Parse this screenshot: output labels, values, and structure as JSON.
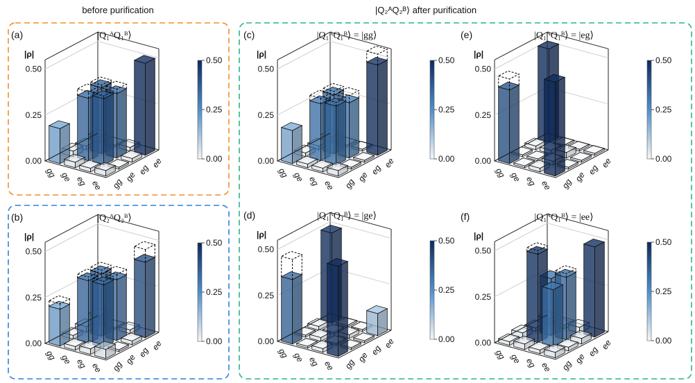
{
  "headers": {
    "left": "before purification",
    "right": "|Q₂ᴬQ₂ᴮ⟩ after purification"
  },
  "colors": {
    "orange": "#f28e2b",
    "blue": "#2f80d8",
    "green": "#2bb38a",
    "cmax": "#0d2a5e",
    "cmid": "#4f8fcb",
    "cmin": "#f7f7f7"
  },
  "z_axis_label": "|ρ|",
  "chart_data": [
    {
      "panel": "(a)",
      "title": "|Q₁ᴬQ₁ᴮ⟩",
      "type": "bar3d",
      "rows": [
        "gg",
        "ge",
        "eg",
        "ee"
      ],
      "cols": [
        "gg",
        "ge",
        "eg",
        "ee"
      ],
      "zticks": [
        "0.00",
        "0.25",
        "0.50"
      ],
      "zlim": [
        0,
        0.55
      ],
      "colorbar": {
        "ticks": [
          "0.00",
          "0.25",
          "0.50"
        ],
        "range": [
          0,
          0.5
        ]
      },
      "values": [
        [
          0.19,
          0.03,
          0.02,
          0.03
        ],
        [
          0.03,
          0.34,
          0.36,
          0.01
        ],
        [
          0.02,
          0.36,
          0.35,
          0.02
        ],
        [
          0.03,
          0.01,
          0.02,
          0.5
        ]
      ],
      "ideal": [
        [
          0.0,
          0.0,
          0.0,
          0.0
        ],
        [
          0.0,
          0.375,
          0.375,
          0.0
        ],
        [
          0.0,
          0.375,
          0.375,
          0.0
        ],
        [
          0.0,
          0.0,
          0.0,
          0.5
        ]
      ]
    },
    {
      "panel": "(b)",
      "title": "|Q₂ᴬQ₂ᴮ⟩",
      "type": "bar3d",
      "rows": [
        "gg",
        "ge",
        "eg",
        "ee"
      ],
      "cols": [
        "gg",
        "ge",
        "eg",
        "ee"
      ],
      "zticks": [
        "0.00",
        "0.25",
        "0.50"
      ],
      "zlim": [
        0,
        0.55
      ],
      "colorbar": {
        "ticks": [
          "0.00",
          "0.25",
          "0.50"
        ],
        "range": [
          0,
          0.5
        ]
      },
      "values": [
        [
          0.2,
          0.02,
          0.03,
          0.05
        ],
        [
          0.02,
          0.34,
          0.34,
          0.01
        ],
        [
          0.03,
          0.34,
          0.33,
          0.02
        ],
        [
          0.05,
          0.01,
          0.02,
          0.41
        ]
      ],
      "ideal": [
        [
          0.23,
          0.0,
          0.0,
          0.0
        ],
        [
          0.0,
          0.36,
          0.36,
          0.0
        ],
        [
          0.0,
          0.36,
          0.36,
          0.0
        ],
        [
          0.0,
          0.0,
          0.0,
          0.48
        ]
      ]
    },
    {
      "panel": "(c)",
      "title": "|Q₁ᴬQ₁ᴮ⟩ = |gg⟩",
      "type": "bar3d",
      "rows": [
        "gg",
        "ge",
        "eg",
        "ee"
      ],
      "cols": [
        "gg",
        "ge",
        "eg",
        "ee"
      ],
      "zticks": [
        "0.00",
        "0.25",
        "0.50"
      ],
      "zlim": [
        0,
        0.55
      ],
      "colorbar": {
        "ticks": [
          "0.00",
          "0.25",
          "0.50"
        ],
        "range": [
          0,
          0.5
        ]
      },
      "values": [
        [
          0.18,
          0.02,
          0.02,
          0.03
        ],
        [
          0.02,
          0.31,
          0.32,
          0.01
        ],
        [
          0.02,
          0.32,
          0.3,
          0.01
        ],
        [
          0.03,
          0.01,
          0.01,
          0.49
        ]
      ],
      "ideal": [
        [
          0.09,
          0.0,
          0.0,
          0.0
        ],
        [
          0.0,
          0.34,
          0.34,
          0.0
        ],
        [
          0.0,
          0.34,
          0.34,
          0.0
        ],
        [
          0.0,
          0.0,
          0.0,
          0.55
        ]
      ]
    },
    {
      "panel": "(d)",
      "title": "|Q₁ᴬQ₁ᴮ⟩ = |ge⟩",
      "type": "bar3d",
      "rows": [
        "gg",
        "ge",
        "eg",
        "ee"
      ],
      "cols": [
        "gg",
        "ge",
        "eg",
        "ee"
      ],
      "zticks": [
        "0.00",
        "0.25",
        "0.50"
      ],
      "zlim": [
        0,
        0.55
      ],
      "colorbar": {
        "ticks": [
          "0.00",
          "0.25",
          "0.50"
        ],
        "range": [
          0,
          0.5
        ]
      },
      "values": [
        [
          0.35,
          0.01,
          0.02,
          0.49
        ],
        [
          0.01,
          0.02,
          0.01,
          0.01
        ],
        [
          0.02,
          0.01,
          0.02,
          0.01
        ],
        [
          0.49,
          0.01,
          0.01,
          0.12
        ]
      ],
      "ideal": [
        [
          0.46,
          0.0,
          0.0,
          0.5
        ],
        [
          0.0,
          0.0,
          0.0,
          0.0
        ],
        [
          0.0,
          0.0,
          0.0,
          0.0
        ],
        [
          0.5,
          0.0,
          0.0,
          0.0
        ]
      ]
    },
    {
      "panel": "(e)",
      "title": "|Q₁ᴬQ₁ᴮ⟩ = |eg⟩",
      "type": "bar3d",
      "rows": [
        "gg",
        "ge",
        "eg",
        "ee"
      ],
      "cols": [
        "gg",
        "ge",
        "eg",
        "ee"
      ],
      "zticks": [
        "0.00",
        "0.25",
        "0.50"
      ],
      "zlim": [
        0,
        0.55
      ],
      "colorbar": {
        "ticks": [
          "0.00",
          "0.25",
          "0.50"
        ],
        "range": [
          0,
          0.5
        ]
      },
      "values": [
        [
          0.4,
          0.01,
          0.02,
          0.51
        ],
        [
          0.01,
          0.01,
          0.02,
          0.01
        ],
        [
          0.02,
          0.02,
          0.03,
          0.01
        ],
        [
          0.51,
          0.01,
          0.01,
          0.01
        ]
      ],
      "ideal": [
        [
          0.46,
          0.0,
          0.0,
          0.5
        ],
        [
          0.0,
          0.0,
          0.0,
          0.0
        ],
        [
          0.0,
          0.0,
          0.0,
          0.0
        ],
        [
          0.5,
          0.0,
          0.0,
          0.0
        ]
      ]
    },
    {
      "panel": "(f)",
      "title": "|Q₁ᴬQ₁ᴮ⟩ = |ee⟩",
      "type": "bar3d",
      "rows": [
        "gg",
        "ge",
        "eg",
        "ee"
      ],
      "cols": [
        "gg",
        "ge",
        "eg",
        "ee"
      ],
      "zticks": [
        "0.00",
        "0.25",
        "0.50"
      ],
      "zlim": [
        0,
        0.55
      ],
      "colorbar": {
        "ticks": [
          "0.00",
          "0.25",
          "0.50"
        ],
        "range": [
          0,
          0.5
        ]
      },
      "values": [
        [
          0.02,
          0.03,
          0.02,
          0.03
        ],
        [
          0.03,
          0.48,
          0.31,
          0.02
        ],
        [
          0.02,
          0.31,
          0.34,
          0.03
        ],
        [
          0.03,
          0.02,
          0.03,
          0.49
        ]
      ],
      "ideal": [
        [
          0.0,
          0.0,
          0.0,
          0.0
        ],
        [
          0.0,
          0.5,
          0.32,
          0.0
        ],
        [
          0.0,
          0.32,
          0.36,
          0.0
        ],
        [
          0.0,
          0.0,
          0.0,
          0.5
        ]
      ]
    }
  ]
}
